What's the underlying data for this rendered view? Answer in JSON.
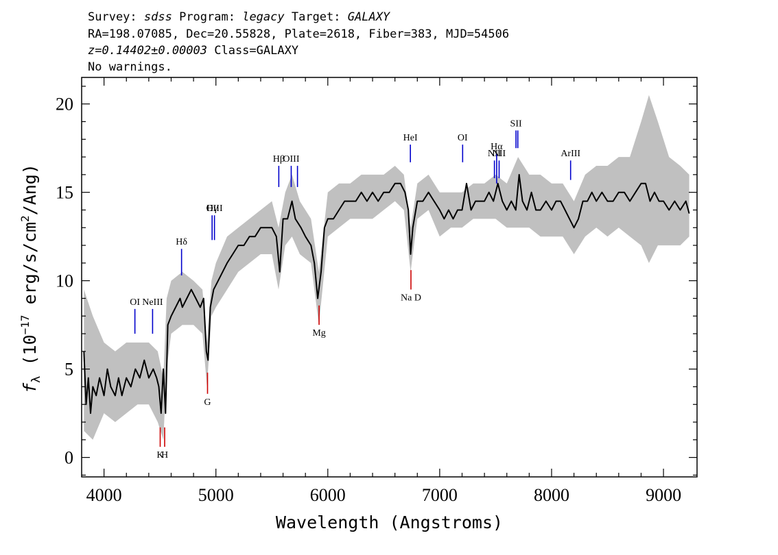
{
  "header": {
    "line1_parts": [
      "Survey: ",
      "sdss",
      " Program: ",
      "legacy",
      " Target: ",
      "GALAXY"
    ],
    "line2": "RA=198.07085, Dec=20.55828, Plate=2618, Fiber=383, MJD=54506",
    "line3_z": "z=0.14402±0.00003",
    "line3_class": " Class=GALAXY",
    "line4": "No warnings."
  },
  "chart_data": {
    "type": "line",
    "xlabel": "Wavelength (Angstroms)",
    "ylabel_parts": {
      "f": "f",
      "sub": "λ",
      "pre": "(10",
      "exp1": "−17",
      "mid": " erg/s/cm",
      "exp2": "2",
      "post": "/Ang)"
    },
    "xlim": [
      3800,
      9300
    ],
    "ylim": [
      -1.1,
      21.5
    ],
    "xticks": [
      4000,
      5000,
      6000,
      7000,
      8000,
      9000
    ],
    "yticks": [
      0,
      5,
      10,
      15,
      20
    ],
    "series": [
      {
        "role": "error-band",
        "color": "#c0c0c0",
        "points": [
          [
            3820,
            1.5,
            9.5
          ],
          [
            3900,
            1.0,
            8.0
          ],
          [
            4000,
            2.5,
            6.5
          ],
          [
            4100,
            2.0,
            6.0
          ],
          [
            4200,
            2.5,
            6.5
          ],
          [
            4300,
            3.0,
            6.5
          ],
          [
            4400,
            3.0,
            6.5
          ],
          [
            4480,
            2.0,
            6.0
          ],
          [
            4530,
            1.0,
            4.5
          ],
          [
            4560,
            5.0,
            9.0
          ],
          [
            4600,
            7.0,
            10.0
          ],
          [
            4700,
            7.5,
            10.5
          ],
          [
            4800,
            7.5,
            10.0
          ],
          [
            4880,
            7.0,
            9.5
          ],
          [
            4920,
            4.0,
            6.5
          ],
          [
            4960,
            8.0,
            10.0
          ],
          [
            5000,
            8.5,
            11.0
          ],
          [
            5100,
            9.5,
            12.5
          ],
          [
            5200,
            10.5,
            13.0
          ],
          [
            5300,
            11.0,
            13.5
          ],
          [
            5400,
            11.5,
            14.0
          ],
          [
            5500,
            11.5,
            14.5
          ],
          [
            5560,
            9.5,
            13.0
          ],
          [
            5620,
            12.0,
            15.0
          ],
          [
            5680,
            12.5,
            16.0
          ],
          [
            5750,
            11.5,
            14.5
          ],
          [
            5850,
            11.0,
            13.5
          ],
          [
            5920,
            7.5,
            10.5
          ],
          [
            6000,
            12.5,
            15.0
          ],
          [
            6100,
            13.0,
            15.5
          ],
          [
            6200,
            13.5,
            15.5
          ],
          [
            6300,
            13.5,
            16.0
          ],
          [
            6400,
            13.5,
            16.0
          ],
          [
            6500,
            14.0,
            16.0
          ],
          [
            6600,
            14.5,
            16.5
          ],
          [
            6680,
            14.0,
            16.0
          ],
          [
            6740,
            10.5,
            13.0
          ],
          [
            6800,
            13.5,
            15.5
          ],
          [
            6900,
            14.0,
            16.0
          ],
          [
            7000,
            12.5,
            15.0
          ],
          [
            7100,
            13.0,
            15.0
          ],
          [
            7200,
            13.0,
            15.0
          ],
          [
            7300,
            13.5,
            15.5
          ],
          [
            7400,
            13.5,
            15.5
          ],
          [
            7500,
            13.5,
            16.0
          ],
          [
            7600,
            13.0,
            15.5
          ],
          [
            7700,
            13.0,
            17.0
          ],
          [
            7800,
            13.0,
            16.0
          ],
          [
            7900,
            12.5,
            16.0
          ],
          [
            8000,
            12.5,
            15.5
          ],
          [
            8100,
            12.5,
            15.5
          ],
          [
            8200,
            11.5,
            14.5
          ],
          [
            8300,
            12.5,
            16.0
          ],
          [
            8400,
            13.0,
            16.5
          ],
          [
            8500,
            12.5,
            16.5
          ],
          [
            8600,
            13.0,
            17.0
          ],
          [
            8700,
            12.5,
            17.0
          ],
          [
            8800,
            12.0,
            19.0
          ],
          [
            8870,
            11.0,
            20.5
          ],
          [
            8950,
            12.0,
            19.0
          ],
          [
            9050,
            12.0,
            17.0
          ],
          [
            9150,
            12.0,
            16.5
          ],
          [
            9230,
            12.5,
            16.0
          ]
        ]
      },
      {
        "role": "flux",
        "color": "#000000",
        "points": [
          [
            3820,
            6.0
          ],
          [
            3840,
            3.0
          ],
          [
            3860,
            4.5
          ],
          [
            3880,
            2.5
          ],
          [
            3900,
            4.0
          ],
          [
            3930,
            3.5
          ],
          [
            3960,
            4.5
          ],
          [
            4000,
            3.5
          ],
          [
            4030,
            5.0
          ],
          [
            4060,
            4.0
          ],
          [
            4100,
            3.5
          ],
          [
            4130,
            4.5
          ],
          [
            4160,
            3.5
          ],
          [
            4200,
            4.5
          ],
          [
            4240,
            4.0
          ],
          [
            4280,
            5.0
          ],
          [
            4320,
            4.5
          ],
          [
            4360,
            5.5
          ],
          [
            4400,
            4.5
          ],
          [
            4440,
            5.0
          ],
          [
            4470,
            4.5
          ],
          [
            4490,
            4.0
          ],
          [
            4510,
            2.5
          ],
          [
            4530,
            5.0
          ],
          [
            4550,
            2.5
          ],
          [
            4570,
            7.5
          ],
          [
            4600,
            8.0
          ],
          [
            4640,
            8.5
          ],
          [
            4680,
            9.0
          ],
          [
            4700,
            8.5
          ],
          [
            4740,
            9.0
          ],
          [
            4780,
            9.5
          ],
          [
            4820,
            9.0
          ],
          [
            4860,
            8.5
          ],
          [
            4890,
            9.0
          ],
          [
            4915,
            6.0
          ],
          [
            4930,
            5.5
          ],
          [
            4950,
            8.5
          ],
          [
            4980,
            9.5
          ],
          [
            5020,
            10.0
          ],
          [
            5060,
            10.5
          ],
          [
            5100,
            11.0
          ],
          [
            5150,
            11.5
          ],
          [
            5200,
            12.0
          ],
          [
            5250,
            12.0
          ],
          [
            5300,
            12.5
          ],
          [
            5350,
            12.5
          ],
          [
            5400,
            13.0
          ],
          [
            5450,
            13.0
          ],
          [
            5500,
            13.0
          ],
          [
            5540,
            12.5
          ],
          [
            5570,
            10.5
          ],
          [
            5600,
            13.5
          ],
          [
            5640,
            13.5
          ],
          [
            5680,
            14.5
          ],
          [
            5710,
            13.5
          ],
          [
            5760,
            13.0
          ],
          [
            5800,
            12.5
          ],
          [
            5850,
            12.0
          ],
          [
            5880,
            11.0
          ],
          [
            5910,
            9.0
          ],
          [
            5940,
            10.5
          ],
          [
            5970,
            13.0
          ],
          [
            6000,
            13.5
          ],
          [
            6050,
            13.5
          ],
          [
            6100,
            14.0
          ],
          [
            6150,
            14.5
          ],
          [
            6200,
            14.5
          ],
          [
            6250,
            14.5
          ],
          [
            6300,
            15.0
          ],
          [
            6350,
            14.5
          ],
          [
            6400,
            15.0
          ],
          [
            6450,
            14.5
          ],
          [
            6500,
            15.0
          ],
          [
            6550,
            15.0
          ],
          [
            6600,
            15.5
          ],
          [
            6650,
            15.5
          ],
          [
            6690,
            15.0
          ],
          [
            6720,
            14.0
          ],
          [
            6740,
            11.5
          ],
          [
            6760,
            13.0
          ],
          [
            6800,
            14.5
          ],
          [
            6850,
            14.5
          ],
          [
            6900,
            15.0
          ],
          [
            6950,
            14.5
          ],
          [
            7000,
            14.0
          ],
          [
            7040,
            13.5
          ],
          [
            7080,
            14.0
          ],
          [
            7120,
            13.5
          ],
          [
            7160,
            14.0
          ],
          [
            7200,
            14.0
          ],
          [
            7240,
            15.5
          ],
          [
            7280,
            14.0
          ],
          [
            7320,
            14.5
          ],
          [
            7360,
            14.5
          ],
          [
            7400,
            14.5
          ],
          [
            7440,
            15.0
          ],
          [
            7480,
            14.5
          ],
          [
            7520,
            15.5
          ],
          [
            7560,
            14.5
          ],
          [
            7600,
            14.0
          ],
          [
            7640,
            14.5
          ],
          [
            7680,
            14.0
          ],
          [
            7710,
            16.0
          ],
          [
            7740,
            14.5
          ],
          [
            7780,
            14.0
          ],
          [
            7820,
            15.0
          ],
          [
            7860,
            14.0
          ],
          [
            7900,
            14.0
          ],
          [
            7950,
            14.5
          ],
          [
            8000,
            14.0
          ],
          [
            8040,
            14.5
          ],
          [
            8080,
            14.5
          ],
          [
            8120,
            14.0
          ],
          [
            8160,
            13.5
          ],
          [
            8200,
            13.0
          ],
          [
            8240,
            13.5
          ],
          [
            8280,
            14.5
          ],
          [
            8320,
            14.5
          ],
          [
            8360,
            15.0
          ],
          [
            8400,
            14.5
          ],
          [
            8450,
            15.0
          ],
          [
            8500,
            14.5
          ],
          [
            8550,
            14.5
          ],
          [
            8600,
            15.0
          ],
          [
            8650,
            15.0
          ],
          [
            8700,
            14.5
          ],
          [
            8750,
            15.0
          ],
          [
            8800,
            15.5
          ],
          [
            8840,
            15.5
          ],
          [
            8880,
            14.5
          ],
          [
            8920,
            15.0
          ],
          [
            8960,
            14.5
          ],
          [
            9000,
            14.5
          ],
          [
            9050,
            14.0
          ],
          [
            9100,
            14.5
          ],
          [
            9150,
            14.0
          ],
          [
            9200,
            14.5
          ],
          [
            9230,
            13.8
          ]
        ]
      }
    ],
    "emission_lines": [
      {
        "label": "OI",
        "x": 4276,
        "y1": 7.0,
        "y2": 8.4,
        "color": "#0000cc",
        "label_pos": "top"
      },
      {
        "label": "NeIII",
        "x": 4434,
        "y1": 7.0,
        "y2": 8.4,
        "color": "#0000cc",
        "label_pos": "top"
      },
      {
        "label": "Hδ",
        "x": 4693,
        "y1": 10.3,
        "y2": 11.8,
        "color": "#0000cc",
        "label_pos": "top"
      },
      {
        "label": "Hγ",
        "x": 4966,
        "y1": 12.3,
        "y2": 13.7,
        "color": "#0000cc",
        "label_pos": "top"
      },
      {
        "label": "OIII",
        "x": 4987,
        "y1": 12.3,
        "y2": 13.7,
        "color": "#0000cc",
        "label_pos": "top"
      },
      {
        "label": "Hβ",
        "x": 5562,
        "y1": 15.3,
        "y2": 16.5,
        "color": "#0000cc",
        "label_pos": "top"
      },
      {
        "label": "OIII",
        "x": 5673,
        "y1": 15.3,
        "y2": 16.5,
        "color": "#0000cc",
        "label_pos": "top"
      },
      {
        "label": "",
        "x": 5729,
        "y1": 15.3,
        "y2": 16.5,
        "color": "#0000cc",
        "label_pos": "top"
      },
      {
        "label": "HeI",
        "x": 6738,
        "y1": 16.7,
        "y2": 17.7,
        "color": "#0000cc",
        "label_pos": "top"
      },
      {
        "label": "OI",
        "x": 7205,
        "y1": 16.7,
        "y2": 17.7,
        "color": "#0000cc",
        "label_pos": "top"
      },
      {
        "label": "NII",
        "x": 7489,
        "y1": 15.8,
        "y2": 16.8,
        "color": "#0000cc",
        "label_pos": "top"
      },
      {
        "label": "Hα",
        "x": 7509,
        "y1": 15.5,
        "y2": 17.2,
        "color": "#0000cc",
        "label_pos": "top"
      },
      {
        "label": "NII",
        "x": 7531,
        "y1": 15.8,
        "y2": 16.8,
        "color": "#0000cc",
        "label_pos": "top"
      },
      {
        "label": "SII",
        "x": 7682,
        "y1": 17.5,
        "y2": 18.5,
        "color": "#0000cc",
        "label_pos": "top"
      },
      {
        "label": "",
        "x": 7698,
        "y1": 17.5,
        "y2": 18.5,
        "color": "#0000cc",
        "label_pos": "top"
      },
      {
        "label": "ArIII",
        "x": 8170,
        "y1": 15.7,
        "y2": 16.8,
        "color": "#0000cc",
        "label_pos": "top"
      }
    ],
    "absorption_lines": [
      {
        "label": "K",
        "x": 4502,
        "y1": 0.6,
        "y2": 1.7,
        "color": "#cc0000",
        "label_pos": "bottom"
      },
      {
        "label": "H",
        "x": 4542,
        "y1": 0.6,
        "y2": 1.7,
        "color": "#cc0000",
        "label_pos": "bottom"
      },
      {
        "label": "G",
        "x": 4925,
        "y1": 3.6,
        "y2": 4.8,
        "color": "#cc0000",
        "label_pos": "bottom"
      },
      {
        "label": "Mg",
        "x": 5922,
        "y1": 7.5,
        "y2": 8.6,
        "color": "#cc0000",
        "label_pos": "bottom"
      },
      {
        "label": "Na D",
        "x": 6743,
        "y1": 9.5,
        "y2": 10.6,
        "color": "#cc0000",
        "label_pos": "bottom"
      }
    ]
  }
}
